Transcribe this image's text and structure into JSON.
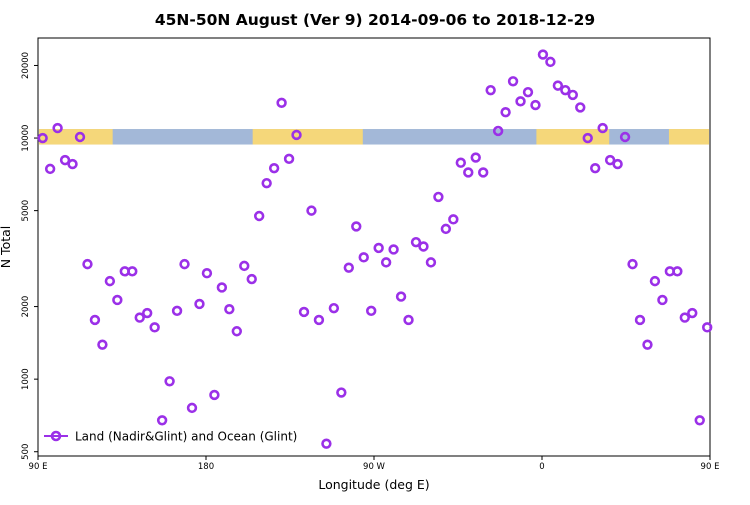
{
  "chart_data": {
    "type": "scatter",
    "title": "45N-50N August (Ver 9)   2014-09-06 to 2018-12-29",
    "xlabel": "Longitude (deg E)",
    "ylabel": "N Total",
    "y_scale": "log",
    "xlim": [
      90,
      450
    ],
    "ylim": [
      480,
      26000
    ],
    "x_ticks": [
      {
        "value": 90,
        "label": "90 E"
      },
      {
        "value": 180,
        "label": "180"
      },
      {
        "value": 270,
        "label": "90 W"
      },
      {
        "value": 360,
        "label": "0"
      },
      {
        "value": 450,
        "label": "90 E"
      }
    ],
    "y_ticks": [
      {
        "value": 500,
        "label": "500"
      },
      {
        "value": 1000,
        "label": "1000"
      },
      {
        "value": 2000,
        "label": "2000"
      },
      {
        "value": 5000,
        "label": "5000"
      },
      {
        "value": 10000,
        "label": "10000"
      },
      {
        "value": 20000,
        "label": "20000"
      }
    ],
    "legend": {
      "placement": "bottom-left",
      "entries": [
        "Land (Nadir&Glint) and Ocean (Glint)"
      ]
    },
    "map_strip": {
      "y_range": [
        9400,
        10900
      ],
      "ocean_color": "#a3b8d8",
      "land_color": "#f5d77a",
      "land_segments": [
        [
          90,
          130
        ],
        [
          205,
          264
        ],
        [
          357,
          396
        ],
        [
          428,
          450
        ]
      ]
    },
    "series": [
      {
        "name": "Land (Nadir&Glint) and Ocean (Glint)",
        "color": "#9b30e8",
        "x": [
          92.5,
          96.5,
          100.5,
          104.5,
          108.5,
          112.5,
          116.5,
          120.5,
          124.5,
          128.5,
          132.5,
          136.5,
          140.5,
          144.5,
          148.5,
          152.5,
          156.5,
          160.5,
          164.5,
          168.5,
          172.5,
          176.5,
          180.5,
          184.5,
          188.5,
          192.5,
          196.5,
          200.5,
          204.5,
          208.5,
          212.5,
          216.5,
          220.5,
          224.5,
          228.5,
          232.5,
          236.5,
          240.5,
          244.5,
          248.5,
          252.5,
          256.5,
          260.5,
          264.5,
          268.5,
          272.5,
          276.5,
          280.5,
          284.5,
          288.5,
          292.5,
          296.5,
          300.5,
          304.5,
          308.5,
          312.5,
          316.5,
          320.5,
          324.5,
          328.5,
          332.5,
          336.5,
          340.5,
          344.5,
          348.5,
          352.5,
          356.5,
          360.5,
          364.5,
          368.5,
          372.5,
          376.5,
          380.5,
          384.5,
          388.5,
          392.5,
          396.5,
          400.5,
          404.5,
          408.5,
          412.5,
          416.5,
          420.5,
          424.5,
          428.5,
          432.5,
          436.5,
          440.5,
          444.5,
          448.5
        ],
        "y": [
          10000,
          7450,
          11000,
          8100,
          7800,
          10100,
          3000,
          1760,
          1390,
          2550,
          2130,
          2800,
          2800,
          1800,
          1880,
          1640,
          675,
          980,
          1920,
          3000,
          760,
          2050,
          2750,
          860,
          2400,
          1950,
          1580,
          2950,
          2600,
          4750,
          6500,
          7500,
          14000,
          8200,
          10300,
          1900,
          5000,
          1760,
          540,
          1970,
          880,
          2900,
          4300,
          3200,
          1920,
          3500,
          3050,
          3450,
          2200,
          1760,
          3700,
          3550,
          3050,
          5700,
          4200,
          4600,
          7900,
          7200,
          8300,
          7200,
          15800,
          10700,
          12800,
          17200,
          14200,
          15500,
          13700,
          22200,
          20700,
          16500,
          15800,
          15100,
          13400,
          10000,
          7500,
          11000,
          8100,
          7800,
          10100,
          3000,
          1760,
          1390,
          2550,
          2130,
          2800,
          2800,
          1800,
          1880,
          675,
          1640
        ]
      }
    ]
  }
}
